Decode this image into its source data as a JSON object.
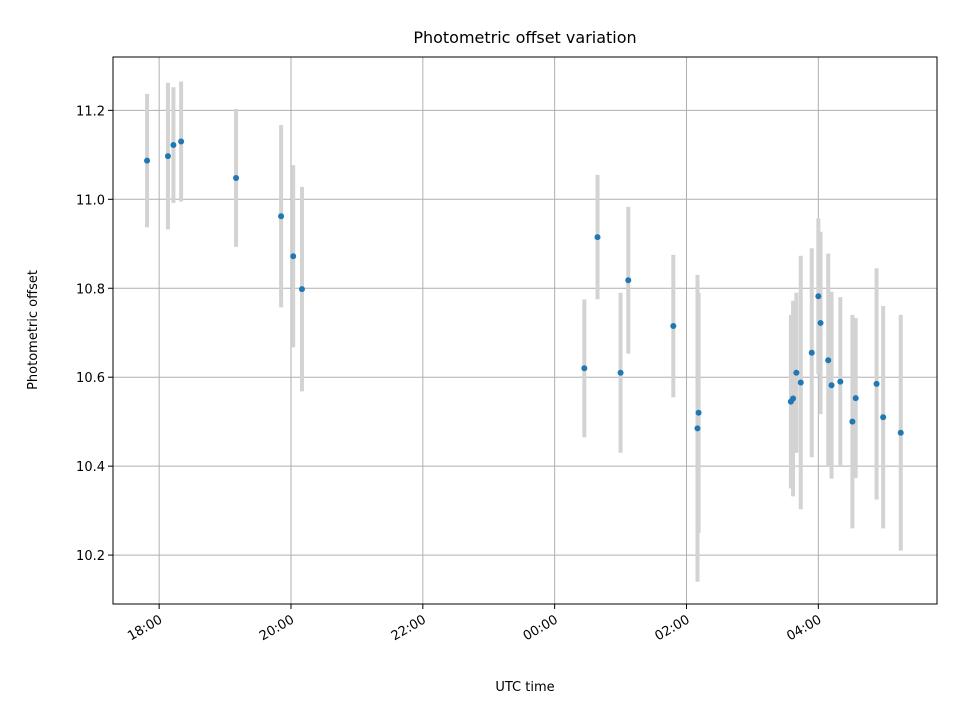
{
  "chart_data": {
    "type": "scatter",
    "title": "Photometric offset variation",
    "xlabel": "UTC time",
    "ylabel": "Photometric offset",
    "x_tick_labels": [
      "18:00",
      "20:00",
      "22:00",
      "00:00",
      "02:00",
      "04:00"
    ],
    "x_ticks": [
      "18:00",
      "20:00",
      "22:00",
      "00:00",
      "02:00",
      "04:00"
    ],
    "x_lim": [
      "17:18",
      "05:48"
    ],
    "y_ticks": [
      10.2,
      10.4,
      10.6,
      10.8,
      11.0,
      11.2
    ],
    "y_tick_labels": [
      "10.2",
      "10.4",
      "10.6",
      "10.8",
      "11.0",
      "11.2"
    ],
    "ylim": [
      10.09,
      11.32
    ],
    "grid": true,
    "colors": {
      "point": "#1f77b4",
      "errorbar": "#d3d3d3"
    },
    "series": [
      {
        "points": [
          {
            "t": "17:49",
            "y": 11.087,
            "err": 0.15
          },
          {
            "t": "18:08",
            "y": 11.097,
            "err": 0.165
          },
          {
            "t": "18:13",
            "y": 11.122,
            "err": 0.13
          },
          {
            "t": "18:20",
            "y": 11.13,
            "err": 0.135
          },
          {
            "t": "19:10",
            "y": 11.048,
            "err": 0.155
          },
          {
            "t": "19:51",
            "y": 10.962,
            "err": 0.205
          },
          {
            "t": "20:02",
            "y": 10.872,
            "err": 0.205
          },
          {
            "t": "20:10",
            "y": 10.798,
            "err": 0.23
          },
          {
            "t": "00:27",
            "y": 10.62,
            "err": 0.155
          },
          {
            "t": "00:39",
            "y": 10.915,
            "err": 0.14
          },
          {
            "t": "01:00",
            "y": 10.61,
            "err": 0.18
          },
          {
            "t": "01:07",
            "y": 10.818,
            "err": 0.165
          },
          {
            "t": "01:48",
            "y": 10.715,
            "err": 0.16
          },
          {
            "t": "02:10",
            "y": 10.485,
            "err": 0.345
          },
          {
            "t": "02:11",
            "y": 10.52,
            "err": 0.27
          },
          {
            "t": "03:35",
            "y": 10.545,
            "err": 0.195
          },
          {
            "t": "03:37",
            "y": 10.552,
            "err": 0.22
          },
          {
            "t": "03:40",
            "y": 10.61,
            "err": 0.18
          },
          {
            "t": "03:44",
            "y": 10.588,
            "err": 0.285
          },
          {
            "t": "03:54",
            "y": 10.655,
            "err": 0.235
          },
          {
            "t": "04:00",
            "y": 10.782,
            "err": 0.175
          },
          {
            "t": "04:02",
            "y": 10.722,
            "err": 0.205
          },
          {
            "t": "04:09",
            "y": 10.638,
            "err": 0.24
          },
          {
            "t": "04:12",
            "y": 10.582,
            "err": 0.21
          },
          {
            "t": "04:20",
            "y": 10.59,
            "err": 0.19
          },
          {
            "t": "04:31",
            "y": 10.5,
            "err": 0.24
          },
          {
            "t": "04:34",
            "y": 10.553,
            "err": 0.18
          },
          {
            "t": "04:53",
            "y": 10.585,
            "err": 0.26
          },
          {
            "t": "04:59",
            "y": 10.51,
            "err": 0.25
          },
          {
            "t": "05:15",
            "y": 10.475,
            "err": 0.265
          }
        ]
      }
    ]
  }
}
